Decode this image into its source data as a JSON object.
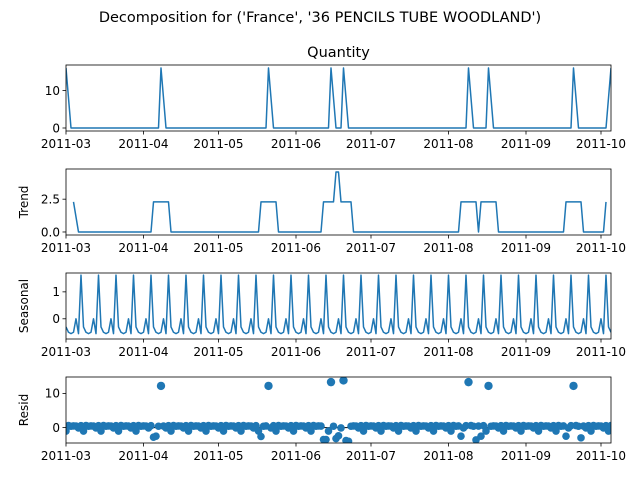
{
  "figure": {
    "suptitle": "Decomposition for ('France', '36 PENCILS TUBE WOODLAND')"
  },
  "style": {
    "line_color": "#1f77b4",
    "marker_color": "#1f77b4",
    "axis_color": "#000000"
  },
  "chart_data": [
    {
      "type": "line",
      "title": "Quantity",
      "ylabel": "",
      "x_start": "2011-03-01",
      "x_end": "2011-10-05",
      "x_ticks": [
        "2011-03",
        "2011-04",
        "2011-05",
        "2011-06",
        "2011-07",
        "2011-08",
        "2011-09",
        "2011-10"
      ],
      "ylim": [
        -0.8,
        16.8
      ],
      "y_ticks": [
        0,
        10
      ],
      "series": [
        {
          "points": [
            [
              "2011-03-01",
              16
            ],
            [
              "2011-03-03",
              0
            ],
            [
              "2011-04-07",
              0
            ],
            [
              "2011-04-08",
              16
            ],
            [
              "2011-04-10",
              0
            ],
            [
              "2011-05-20",
              0
            ],
            [
              "2011-05-21",
              16
            ],
            [
              "2011-05-23",
              0
            ],
            [
              "2011-06-14",
              0
            ],
            [
              "2011-06-15",
              16
            ],
            [
              "2011-06-17",
              0
            ],
            [
              "2011-06-19",
              0
            ],
            [
              "2011-06-20",
              16
            ],
            [
              "2011-06-22",
              0
            ],
            [
              "2011-08-08",
              0
            ],
            [
              "2011-08-09",
              16
            ],
            [
              "2011-08-11",
              0
            ],
            [
              "2011-08-16",
              0
            ],
            [
              "2011-08-17",
              16
            ],
            [
              "2011-08-19",
              0
            ],
            [
              "2011-09-19",
              0
            ],
            [
              "2011-09-20",
              16
            ],
            [
              "2011-09-22",
              0
            ],
            [
              "2011-10-03",
              0
            ],
            [
              "2011-10-05",
              16
            ]
          ]
        }
      ]
    },
    {
      "type": "line",
      "title": "",
      "ylabel": "Trend",
      "x_start": "2011-03-01",
      "x_end": "2011-10-05",
      "x_ticks": [
        "2011-03",
        "2011-04",
        "2011-05",
        "2011-06",
        "2011-07",
        "2011-08",
        "2011-09",
        "2011-10"
      ],
      "ylim": [
        -0.23,
        4.8
      ],
      "y_ticks": [
        0.0,
        2.5
      ],
      "y_tick_labels": [
        "0.0",
        "2.5"
      ],
      "series": [
        {
          "points": [
            [
              "2011-03-04",
              2.29
            ],
            [
              "2011-03-06",
              0
            ],
            [
              "2011-04-04",
              0
            ],
            [
              "2011-04-05",
              2.29
            ],
            [
              "2011-04-11",
              2.29
            ],
            [
              "2011-04-12",
              0
            ],
            [
              "2011-05-17",
              0
            ],
            [
              "2011-05-18",
              2.29
            ],
            [
              "2011-05-24",
              2.29
            ],
            [
              "2011-05-25",
              0
            ],
            [
              "2011-06-11",
              0
            ],
            [
              "2011-06-12",
              2.29
            ],
            [
              "2011-06-16",
              2.29
            ],
            [
              "2011-06-17",
              4.57
            ],
            [
              "2011-06-18",
              4.57
            ],
            [
              "2011-06-19",
              2.29
            ],
            [
              "2011-06-23",
              2.29
            ],
            [
              "2011-06-24",
              0
            ],
            [
              "2011-08-05",
              0
            ],
            [
              "2011-08-06",
              2.29
            ],
            [
              "2011-08-12",
              2.29
            ],
            [
              "2011-08-13",
              0
            ],
            [
              "2011-08-14",
              2.29
            ],
            [
              "2011-08-20",
              2.29
            ],
            [
              "2011-08-21",
              0
            ],
            [
              "2011-09-16",
              0
            ],
            [
              "2011-09-17",
              2.29
            ],
            [
              "2011-09-23",
              2.29
            ],
            [
              "2011-09-24",
              0
            ],
            [
              "2011-10-02",
              0
            ],
            [
              "2011-10-03",
              2.29
            ]
          ]
        }
      ]
    },
    {
      "type": "line",
      "title": "",
      "ylabel": "Seasonal",
      "x_start": "2011-03-01",
      "x_end": "2011-10-05",
      "x_ticks": [
        "2011-03",
        "2011-04",
        "2011-05",
        "2011-06",
        "2011-07",
        "2011-08",
        "2011-09",
        "2011-10"
      ],
      "ylim": [
        -0.75,
        1.7
      ],
      "y_ticks": [
        0,
        1
      ],
      "period_days": 7,
      "start_offset_days": 1,
      "weekly_pattern": [
        1.62,
        -0.3,
        -0.5,
        -0.55,
        -0.5,
        0.0,
        -0.55
      ],
      "series": [
        {
          "note_type": "repeating"
        }
      ]
    },
    {
      "type": "scatter",
      "title": "",
      "ylabel": "Resid",
      "x_start": "2011-03-01",
      "x_end": "2011-10-05",
      "x_ticks": [
        "2011-03",
        "2011-04",
        "2011-05",
        "2011-06",
        "2011-07",
        "2011-08",
        "2011-09",
        "2011-10"
      ],
      "ylim": [
        -4.5,
        14.8
      ],
      "y_ticks": [
        0,
        10
      ],
      "baseline": 0,
      "outliers": [
        [
          "2011-04-08",
          12.2
        ],
        [
          "2011-05-21",
          12.2
        ],
        [
          "2011-06-15",
          13.3
        ],
        [
          "2011-06-20",
          13.8
        ],
        [
          "2011-08-09",
          13.3
        ],
        [
          "2011-08-17",
          12.2
        ],
        [
          "2011-09-20",
          12.2
        ]
      ],
      "low_points": [
        [
          "2011-04-05",
          -2.8
        ],
        [
          "2011-04-06",
          -2.5
        ],
        [
          "2011-05-18",
          -2.6
        ],
        [
          "2011-06-12",
          -3.5
        ],
        [
          "2011-06-13",
          -3.5
        ],
        [
          "2011-06-17",
          -3.2
        ],
        [
          "2011-06-18",
          -2.4
        ],
        [
          "2011-06-21",
          -3.8
        ],
        [
          "2011-06-22",
          -4.0
        ],
        [
          "2011-08-06",
          -2.5
        ],
        [
          "2011-08-12",
          -3.6
        ],
        [
          "2011-08-14",
          -2.5
        ],
        [
          "2011-09-17",
          -2.5
        ],
        [
          "2011-09-23",
          -3.0
        ]
      ],
      "other_points_pattern": [
        -1.0,
        0.6,
        0.4,
        0.5,
        0.45,
        -0.1,
        0.55
      ]
    }
  ]
}
